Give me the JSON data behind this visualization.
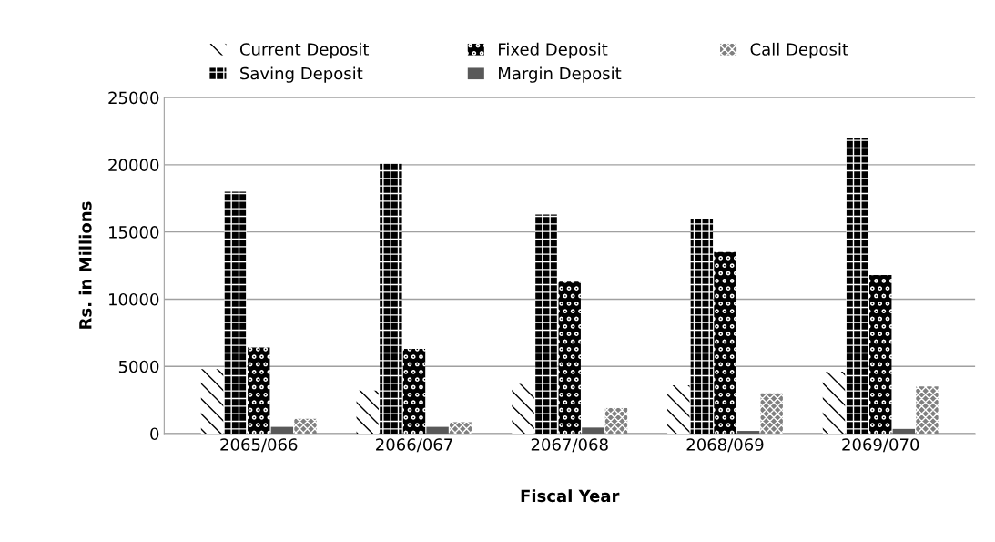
{
  "chart_data": {
    "type": "bar",
    "xlabel": "Fiscal Year",
    "ylabel": "Rs. in Millions",
    "categories": [
      "2065/066",
      "2066/067",
      "2067/068",
      "2068/069",
      "2069/070"
    ],
    "series": [
      {
        "name": "Current Deposit",
        "color": "#ffffff",
        "values": [
          4800,
          3200,
          3700,
          3600,
          4600
        ]
      },
      {
        "name": "Saving Deposit",
        "color": "#000000",
        "values": [
          18000,
          20100,
          16300,
          16000,
          22000
        ]
      },
      {
        "name": "Fixed Deposit",
        "color": "#000000",
        "values": [
          6400,
          6300,
          11300,
          13500,
          11800
        ]
      },
      {
        "name": "Margin Deposit",
        "color": "#595959",
        "values": [
          500,
          500,
          450,
          200,
          350
        ]
      },
      {
        "name": "Call Deposit",
        "color": "#808080",
        "values": [
          1100,
          850,
          1900,
          3000,
          3500
        ]
      }
    ],
    "ylim": [
      0,
      25000
    ],
    "yticks": [
      0,
      5000,
      10000,
      15000,
      20000,
      25000
    ],
    "grid": "y",
    "legend": "top"
  }
}
